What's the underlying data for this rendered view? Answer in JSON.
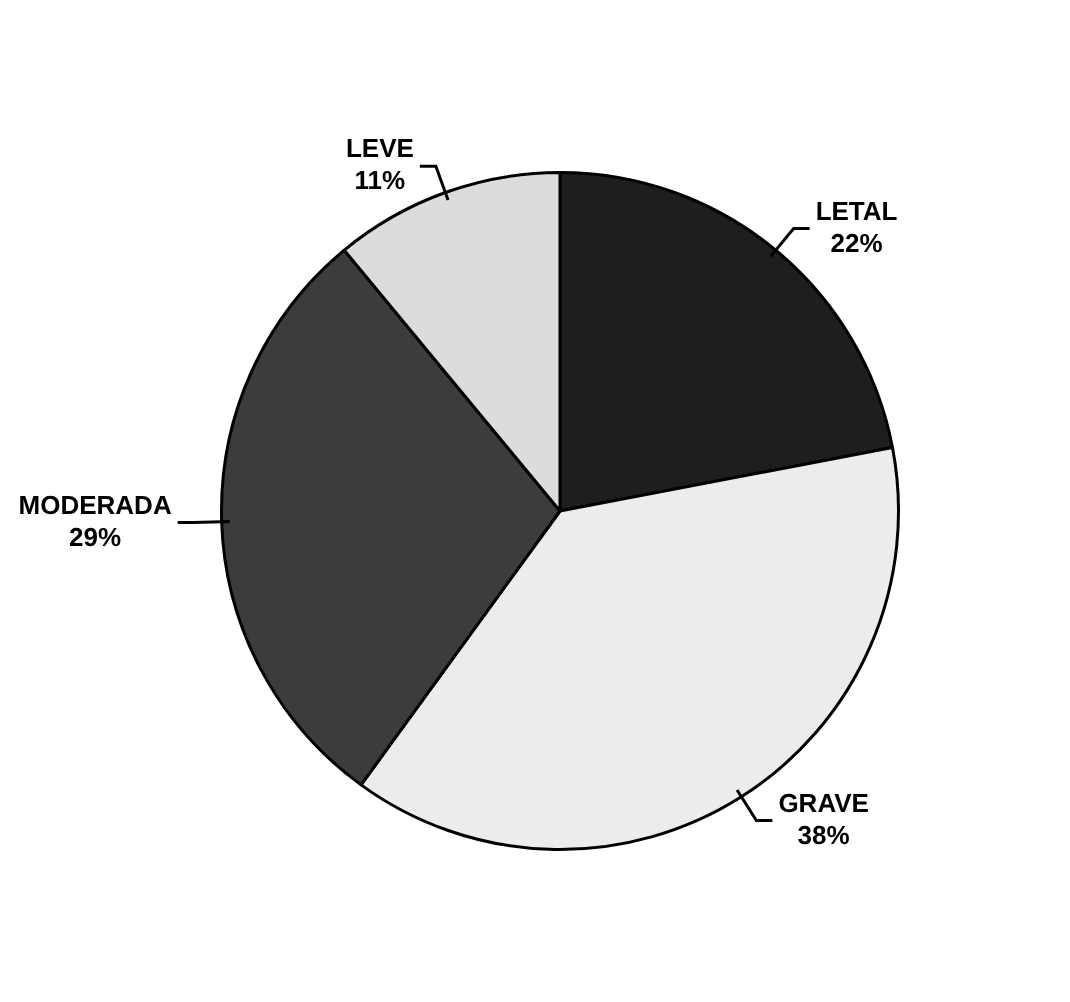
{
  "chart_data": {
    "type": "pie",
    "categories": [
      "LETAL",
      "GRAVE",
      "MODERADA",
      "LEVE"
    ],
    "values": [
      22,
      38,
      29,
      11
    ],
    "value_labels": [
      "22%",
      "38%",
      "29%",
      "11%"
    ],
    "colors": [
      "#1e1e1e",
      "#ececec",
      "#3c3c3c",
      "#dcdcdc"
    ],
    "legend": false
  }
}
